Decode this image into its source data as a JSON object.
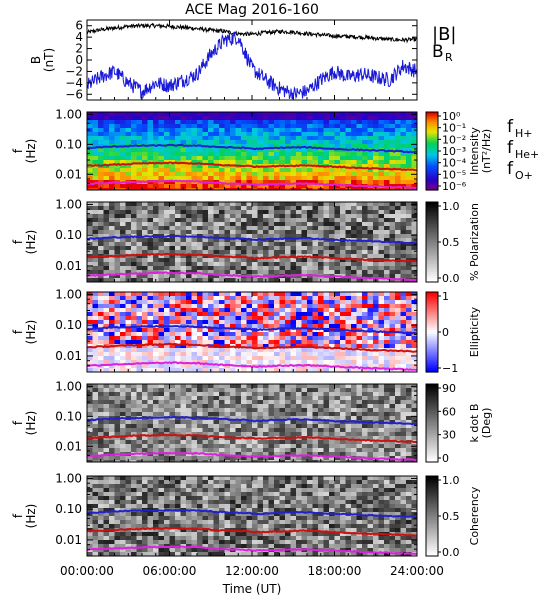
{
  "title": "ACE Mag 2016-160",
  "chart_data": {
    "type": "spectrogram-stack",
    "title": "ACE Mag 2016-160",
    "x_axis": {
      "label": "Time (UT)",
      "range_hours": [
        0,
        24
      ],
      "tick_labels": [
        "00:00:00",
        "06:00:00",
        "12:00:00",
        "18:00:00",
        "24:00:00"
      ]
    },
    "field_panel": {
      "ylabel": "B",
      "yunit": "(nT)",
      "yrange": [
        -7,
        7
      ],
      "yticks": [
        -6,
        -4,
        -2,
        0,
        2,
        4,
        6
      ],
      "legend": [
        {
          "label": "|B|",
          "color": "#000000"
        },
        {
          "label": "B",
          "sub": "R",
          "color": "#1a1ad9"
        }
      ],
      "series": [
        {
          "name": "|B|",
          "color": "#000000",
          "t": [
            0,
            1,
            2,
            3,
            4,
            5,
            6,
            7,
            8,
            9,
            10,
            11,
            12,
            13,
            14,
            15,
            16,
            17,
            18,
            19,
            20,
            21,
            22,
            23,
            24
          ],
          "values": [
            4.8,
            5.3,
            5.6,
            5.9,
            6.0,
            6.0,
            5.9,
            5.7,
            5.5,
            5.2,
            5.0,
            4.6,
            4.5,
            4.8,
            5.0,
            4.9,
            4.6,
            4.4,
            4.2,
            4.1,
            4.0,
            3.8,
            3.6,
            3.5,
            3.6
          ]
        },
        {
          "name": "B",
          "sub": "R",
          "color": "#1a1ad9",
          "t": [
            0,
            1,
            2,
            3,
            4,
            5,
            6,
            7,
            8,
            9,
            10,
            11,
            12,
            13,
            14,
            15,
            16,
            17,
            18,
            19,
            20,
            21,
            22,
            23,
            24
          ],
          "values": [
            -4.5,
            -3.0,
            -2.0,
            -4.0,
            -5.5,
            -4.0,
            -4.5,
            -3.5,
            -2.5,
            1.0,
            3.5,
            4.0,
            -1.5,
            -3.5,
            -5.0,
            -6.0,
            -5.5,
            -3.5,
            -2.0,
            -3.0,
            -2.5,
            -3.0,
            -3.5,
            -1.0,
            -2.0
          ]
        }
      ]
    },
    "spectro_panels": [
      {
        "id": "intensity",
        "ylabel": "f",
        "yunit": "(Hz)",
        "scale": "log",
        "yrange": [
          0.003,
          1.2
        ],
        "ytick_labels": [
          "1.00",
          "0.10",
          "0.01"
        ],
        "colorbar": {
          "label": "Intensity",
          "unit": "(nT²/Hz)",
          "ticks": [
            "10⁰",
            "10⁻¹",
            "10⁻²",
            "10⁻³",
            "10⁻⁴",
            "10⁻⁵",
            "10⁻⁶"
          ],
          "map": "rainbow"
        },
        "legend": [
          {
            "label": "f",
            "sub": "H+",
            "color": "#2222cc"
          },
          {
            "label": "f",
            "sub": "He+",
            "color": "#cc1111"
          },
          {
            "label": "f",
            "sub": "O+",
            "color": "#dd22dd"
          }
        ]
      },
      {
        "id": "polarization",
        "ylabel": "f",
        "yunit": "(Hz)",
        "scale": "log",
        "yrange": [
          0.003,
          1.2
        ],
        "ytick_labels": [
          "1.00",
          "0.10",
          "0.01"
        ],
        "colorbar": {
          "label": "% Polarization",
          "ticks": [
            "1.0",
            "0.5",
            "0.0"
          ],
          "map": "gray"
        }
      },
      {
        "id": "ellipticity",
        "ylabel": "f",
        "yunit": "(Hz)",
        "scale": "log",
        "yrange": [
          0.003,
          1.2
        ],
        "ytick_labels": [
          "1.00",
          "0.10",
          "0.01"
        ],
        "colorbar": {
          "label": "Ellipticity",
          "ticks": [
            "1",
            "0",
            "−1"
          ],
          "map": "bwr"
        }
      },
      {
        "id": "kdotb",
        "ylabel": "f",
        "yunit": "(Hz)",
        "scale": "log",
        "yrange": [
          0.003,
          1.2
        ],
        "ytick_labels": [
          "1.00",
          "0.10",
          "0.01"
        ],
        "colorbar": {
          "label": "k dot B",
          "unit": "(Deg)",
          "ticks": [
            "90",
            "60",
            "30",
            "0"
          ],
          "map": "gray"
        }
      },
      {
        "id": "coherency",
        "ylabel": "f",
        "yunit": "(Hz)",
        "scale": "log",
        "yrange": [
          0.003,
          1.2
        ],
        "ytick_labels": [
          "1.00",
          "0.10",
          "0.01"
        ],
        "colorbar": {
          "label": "Coherency",
          "ticks": [
            "1.0",
            "0.5",
            "0.0"
          ],
          "map": "gray"
        }
      }
    ],
    "gyrofrequency_lines": [
      {
        "name": "f",
        "sub": "H+",
        "color": "#2222cc",
        "t": [
          0,
          2,
          4,
          6,
          8,
          10,
          11.8,
          12.2,
          14,
          16,
          18,
          20,
          22,
          24
        ],
        "values": [
          0.075,
          0.085,
          0.09,
          0.093,
          0.09,
          0.08,
          0.075,
          0.07,
          0.077,
          0.08,
          0.07,
          0.065,
          0.06,
          0.055
        ]
      },
      {
        "name": "f",
        "sub": "He+",
        "color": "#cc1111",
        "t": [
          0,
          2,
          4,
          6,
          8,
          10,
          11.8,
          12.2,
          14,
          16,
          18,
          20,
          22,
          24
        ],
        "values": [
          0.019,
          0.021,
          0.023,
          0.024,
          0.023,
          0.02,
          0.019,
          0.018,
          0.019,
          0.02,
          0.018,
          0.016,
          0.015,
          0.014
        ]
      },
      {
        "name": "f",
        "sub": "O+",
        "color": "#dd22dd",
        "t": [
          0,
          2,
          4,
          6,
          8,
          10,
          11.8,
          12.2,
          14,
          16,
          18,
          20,
          22,
          24
        ],
        "values": [
          0.0048,
          0.0053,
          0.0057,
          0.006,
          0.0058,
          0.005,
          0.0047,
          0.0045,
          0.0048,
          0.005,
          0.0045,
          0.0041,
          0.0038,
          0.0035
        ]
      }
    ]
  }
}
